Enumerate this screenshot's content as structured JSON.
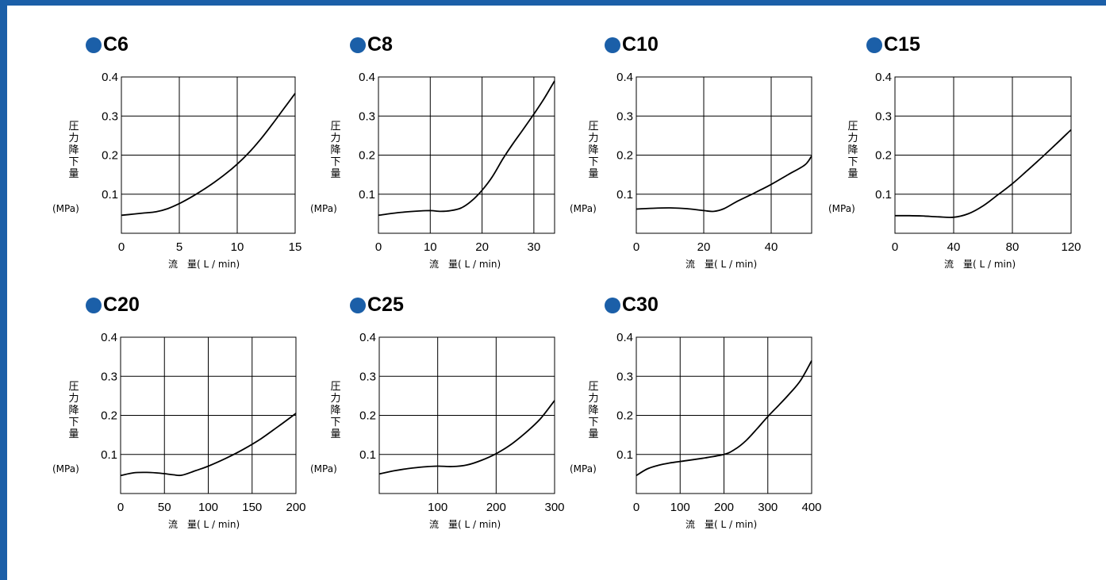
{
  "colors": {
    "accent": "#1b5fa8",
    "line": "#000000",
    "grid": "#000000"
  },
  "chart_data": [
    {
      "type": "line",
      "title": "C6",
      "ylabel": "圧力降下量",
      "yunit": "(MPa)",
      "xlabel": "流　量( L / min)",
      "xlim": [
        0,
        15
      ],
      "ylim": [
        0,
        0.4
      ],
      "xticks": [
        0,
        5,
        10,
        15
      ],
      "yticks": [
        0.1,
        0.2,
        0.3,
        0.4
      ],
      "grid": true,
      "series": [
        {
          "x": [
            0,
            1,
            2,
            3,
            4,
            5,
            6,
            7,
            8,
            9,
            10,
            11,
            12,
            13,
            14,
            15
          ],
          "y": [
            0.046,
            0.049,
            0.052,
            0.055,
            0.063,
            0.076,
            0.092,
            0.11,
            0.13,
            0.152,
            0.177,
            0.206,
            0.24,
            0.278,
            0.318,
            0.358
          ]
        }
      ]
    },
    {
      "type": "line",
      "title": "C8",
      "ylabel": "圧力降下量",
      "yunit": "(MPa)",
      "xlabel": "流　量( L / min)",
      "xlim": [
        0,
        34
      ],
      "ylim": [
        0,
        0.4
      ],
      "xticks": [
        0,
        10,
        20,
        30
      ],
      "yticks": [
        0.1,
        0.2,
        0.3,
        0.4
      ],
      "grid": true,
      "series": [
        {
          "x": [
            0,
            4,
            8,
            10,
            12,
            14,
            16,
            18,
            20,
            22,
            24,
            26,
            28,
            30,
            32,
            34
          ],
          "y": [
            0.046,
            0.053,
            0.057,
            0.058,
            0.056,
            0.058,
            0.065,
            0.083,
            0.11,
            0.145,
            0.19,
            0.23,
            0.267,
            0.305,
            0.345,
            0.39
          ]
        }
      ]
    },
    {
      "type": "line",
      "title": "C10",
      "ylabel": "圧力降下量",
      "yunit": "(MPa)",
      "xlabel": "流　量( L / min)",
      "xlim": [
        0,
        52
      ],
      "ylim": [
        0,
        0.4
      ],
      "xticks": [
        0,
        20,
        40
      ],
      "yticks": [
        0.1,
        0.2,
        0.3,
        0.4
      ],
      "grid": true,
      "series": [
        {
          "x": [
            0,
            5,
            10,
            15,
            20,
            23,
            26,
            30,
            35,
            40,
            45,
            50,
            52
          ],
          "y": [
            0.062,
            0.064,
            0.065,
            0.063,
            0.058,
            0.056,
            0.063,
            0.082,
            0.103,
            0.125,
            0.15,
            0.175,
            0.198
          ]
        }
      ]
    },
    {
      "type": "line",
      "title": "C15",
      "ylabel": "圧力降下量",
      "yunit": "(MPa)",
      "xlabel": "流　量( L / min)",
      "xlim": [
        0,
        120
      ],
      "ylim": [
        0,
        0.4
      ],
      "xticks": [
        0,
        40,
        80,
        120
      ],
      "yticks": [
        0.1,
        0.2,
        0.3,
        0.4
      ],
      "grid": true,
      "series": [
        {
          "x": [
            0,
            10,
            20,
            30,
            40,
            50,
            60,
            70,
            80,
            90,
            100,
            110,
            120
          ],
          "y": [
            0.045,
            0.045,
            0.044,
            0.042,
            0.041,
            0.05,
            0.07,
            0.098,
            0.127,
            0.16,
            0.194,
            0.229,
            0.265
          ]
        }
      ]
    },
    {
      "type": "line",
      "title": "C20",
      "ylabel": "圧力降下量",
      "yunit": "(MPa)",
      "xlabel": "流　量( L / min)",
      "xlim": [
        0,
        200
      ],
      "ylim": [
        0,
        0.4
      ],
      "xticks": [
        0,
        50,
        100,
        150,
        200
      ],
      "yticks": [
        0.1,
        0.2,
        0.3,
        0.4
      ],
      "grid": true,
      "series": [
        {
          "x": [
            0,
            15,
            30,
            45,
            60,
            70,
            85,
            100,
            120,
            140,
            160,
            180,
            200
          ],
          "y": [
            0.046,
            0.053,
            0.054,
            0.052,
            0.048,
            0.047,
            0.058,
            0.07,
            0.09,
            0.113,
            0.14,
            0.172,
            0.205
          ]
        }
      ]
    },
    {
      "type": "line",
      "title": "C25",
      "ylabel": "圧力降下量",
      "yunit": "(MPa)",
      "xlabel": "流　量( L / min)",
      "xlim": [
        0,
        300
      ],
      "ylim": [
        0,
        0.4
      ],
      "xticks": [
        100,
        200,
        300
      ],
      "yticks": [
        0.1,
        0.2,
        0.3,
        0.4
      ],
      "grid": true,
      "series": [
        {
          "x": [
            0,
            25,
            50,
            75,
            100,
            125,
            150,
            175,
            200,
            225,
            250,
            275,
            300
          ],
          "y": [
            0.05,
            0.058,
            0.064,
            0.068,
            0.07,
            0.069,
            0.073,
            0.085,
            0.102,
            0.125,
            0.155,
            0.19,
            0.238
          ]
        }
      ]
    },
    {
      "type": "line",
      "title": "C30",
      "ylabel": "圧力降下量",
      "yunit": "(MPa)",
      "xlabel": "流　量( L / min)",
      "xlim": [
        0,
        400
      ],
      "ylim": [
        0,
        0.4
      ],
      "xticks": [
        0,
        100,
        200,
        300,
        400
      ],
      "yticks": [
        0.1,
        0.2,
        0.3,
        0.4
      ],
      "grid": true,
      "series": [
        {
          "x": [
            0,
            25,
            50,
            75,
            100,
            150,
            200,
            225,
            250,
            275,
            300,
            325,
            350,
            375,
            400
          ],
          "y": [
            0.046,
            0.063,
            0.072,
            0.078,
            0.082,
            0.09,
            0.1,
            0.113,
            0.135,
            0.165,
            0.197,
            0.226,
            0.256,
            0.29,
            0.34
          ]
        }
      ]
    }
  ]
}
